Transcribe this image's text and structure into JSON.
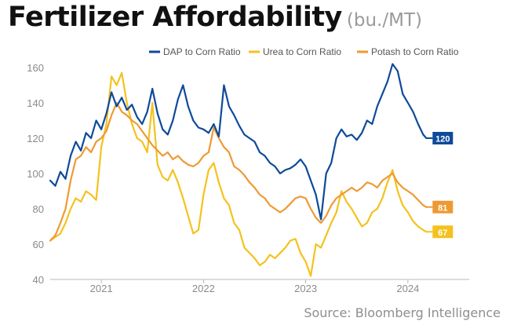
{
  "header": {
    "title": "Fertilizer Affordability",
    "subtitle": "(bu./MT)"
  },
  "source": "Source: Bloomberg Intelligence",
  "colors": {
    "dap": "#0d4a9a",
    "urea": "#f4c21e",
    "potash": "#ee9a32",
    "axis_text": "#8a8a8a"
  },
  "chart_data": {
    "type": "line",
    "title": "Fertilizer Affordability",
    "subtitle": "(bu./MT)",
    "xlabel": "",
    "ylabel": "",
    "xlim": [
      2020.5,
      2024.6
    ],
    "ylim": [
      40,
      160
    ],
    "yticks": [
      "40",
      "60",
      "80",
      "100",
      "120",
      "140",
      "160"
    ],
    "xticks": [
      {
        "label": "2021",
        "value": 2021.0
      },
      {
        "label": "2022",
        "value": 2022.0
      },
      {
        "label": "2023",
        "value": 2023.0
      },
      {
        "label": "2024",
        "value": 2024.0
      }
    ],
    "grid": false,
    "legend_position": "top-right",
    "series": [
      {
        "name": "DAP to Corn Ratio",
        "color": "#0d4a9a",
        "end_label": "120",
        "points": [
          [
            2020.5,
            96
          ],
          [
            2020.55,
            93
          ],
          [
            2020.6,
            101
          ],
          [
            2020.65,
            97
          ],
          [
            2020.7,
            110
          ],
          [
            2020.75,
            118
          ],
          [
            2020.8,
            113
          ],
          [
            2020.85,
            123
          ],
          [
            2020.9,
            120
          ],
          [
            2020.95,
            130
          ],
          [
            2021.0,
            125
          ],
          [
            2021.05,
            134
          ],
          [
            2021.1,
            146
          ],
          [
            2021.15,
            138
          ],
          [
            2021.2,
            143
          ],
          [
            2021.25,
            136
          ],
          [
            2021.3,
            139
          ],
          [
            2021.35,
            132
          ],
          [
            2021.4,
            128
          ],
          [
            2021.45,
            135
          ],
          [
            2021.5,
            148
          ],
          [
            2021.55,
            134
          ],
          [
            2021.6,
            125
          ],
          [
            2021.65,
            122
          ],
          [
            2021.7,
            130
          ],
          [
            2021.75,
            142
          ],
          [
            2021.8,
            150
          ],
          [
            2021.85,
            138
          ],
          [
            2021.9,
            130
          ],
          [
            2021.95,
            126
          ],
          [
            2022.0,
            125
          ],
          [
            2022.05,
            123
          ],
          [
            2022.1,
            128
          ],
          [
            2022.15,
            121
          ],
          [
            2022.2,
            150
          ],
          [
            2022.25,
            138
          ],
          [
            2022.3,
            133
          ],
          [
            2022.35,
            127
          ],
          [
            2022.4,
            122
          ],
          [
            2022.45,
            120
          ],
          [
            2022.5,
            118
          ],
          [
            2022.55,
            112
          ],
          [
            2022.6,
            110
          ],
          [
            2022.65,
            106
          ],
          [
            2022.7,
            104
          ],
          [
            2022.75,
            100
          ],
          [
            2022.8,
            102
          ],
          [
            2022.85,
            103
          ],
          [
            2022.9,
            105
          ],
          [
            2022.95,
            108
          ],
          [
            2023.0,
            104
          ],
          [
            2023.05,
            96
          ],
          [
            2023.1,
            88
          ],
          [
            2023.15,
            74
          ],
          [
            2023.2,
            100
          ],
          [
            2023.25,
            106
          ],
          [
            2023.3,
            120
          ],
          [
            2023.35,
            125
          ],
          [
            2023.4,
            121
          ],
          [
            2023.45,
            122
          ],
          [
            2023.5,
            119
          ],
          [
            2023.55,
            123
          ],
          [
            2023.6,
            130
          ],
          [
            2023.65,
            128
          ],
          [
            2023.7,
            138
          ],
          [
            2023.75,
            145
          ],
          [
            2023.8,
            152
          ],
          [
            2023.85,
            162
          ],
          [
            2023.9,
            158
          ],
          [
            2023.95,
            145
          ],
          [
            2024.0,
            140
          ],
          [
            2024.05,
            135
          ],
          [
            2024.1,
            128
          ],
          [
            2024.15,
            122
          ],
          [
            2024.18,
            120
          ]
        ]
      },
      {
        "name": "Urea to Corn Ratio",
        "color": "#f4c21e",
        "end_label": "67",
        "points": [
          [
            2020.5,
            62
          ],
          [
            2020.55,
            64
          ],
          [
            2020.6,
            66
          ],
          [
            2020.65,
            72
          ],
          [
            2020.7,
            80
          ],
          [
            2020.75,
            86
          ],
          [
            2020.8,
            84
          ],
          [
            2020.85,
            90
          ],
          [
            2020.9,
            88
          ],
          [
            2020.95,
            85
          ],
          [
            2021.0,
            115
          ],
          [
            2021.05,
            128
          ],
          [
            2021.1,
            155
          ],
          [
            2021.15,
            150
          ],
          [
            2021.2,
            157
          ],
          [
            2021.25,
            140
          ],
          [
            2021.3,
            128
          ],
          [
            2021.35,
            120
          ],
          [
            2021.4,
            118
          ],
          [
            2021.45,
            112
          ],
          [
            2021.5,
            140
          ],
          [
            2021.55,
            105
          ],
          [
            2021.6,
            98
          ],
          [
            2021.65,
            96
          ],
          [
            2021.7,
            102
          ],
          [
            2021.75,
            95
          ],
          [
            2021.8,
            86
          ],
          [
            2021.85,
            76
          ],
          [
            2021.9,
            66
          ],
          [
            2021.95,
            68
          ],
          [
            2022.0,
            88
          ],
          [
            2022.05,
            102
          ],
          [
            2022.1,
            106
          ],
          [
            2022.15,
            95
          ],
          [
            2022.2,
            86
          ],
          [
            2022.25,
            82
          ],
          [
            2022.3,
            72
          ],
          [
            2022.35,
            68
          ],
          [
            2022.4,
            58
          ],
          [
            2022.45,
            55
          ],
          [
            2022.5,
            52
          ],
          [
            2022.55,
            48
          ],
          [
            2022.6,
            50
          ],
          [
            2022.65,
            54
          ],
          [
            2022.7,
            52
          ],
          [
            2022.75,
            55
          ],
          [
            2022.8,
            58
          ],
          [
            2022.85,
            62
          ],
          [
            2022.9,
            63
          ],
          [
            2022.95,
            55
          ],
          [
            2023.0,
            50
          ],
          [
            2023.05,
            42
          ],
          [
            2023.1,
            60
          ],
          [
            2023.15,
            58
          ],
          [
            2023.2,
            65
          ],
          [
            2023.25,
            72
          ],
          [
            2023.3,
            78
          ],
          [
            2023.35,
            90
          ],
          [
            2023.4,
            84
          ],
          [
            2023.45,
            80
          ],
          [
            2023.5,
            75
          ],
          [
            2023.55,
            70
          ],
          [
            2023.6,
            72
          ],
          [
            2023.65,
            78
          ],
          [
            2023.7,
            80
          ],
          [
            2023.75,
            86
          ],
          [
            2023.8,
            95
          ],
          [
            2023.85,
            102
          ],
          [
            2023.9,
            90
          ],
          [
            2023.95,
            82
          ],
          [
            2024.0,
            78
          ],
          [
            2024.05,
            73
          ],
          [
            2024.1,
            70
          ],
          [
            2024.15,
            68
          ],
          [
            2024.18,
            67
          ]
        ]
      },
      {
        "name": "Potash to Corn Ratio",
        "color": "#ee9a32",
        "end_label": "81",
        "points": [
          [
            2020.5,
            62
          ],
          [
            2020.55,
            65
          ],
          [
            2020.6,
            72
          ],
          [
            2020.65,
            80
          ],
          [
            2020.7,
            96
          ],
          [
            2020.75,
            108
          ],
          [
            2020.8,
            110
          ],
          [
            2020.85,
            115
          ],
          [
            2020.9,
            112
          ],
          [
            2020.95,
            118
          ],
          [
            2021.0,
            120
          ],
          [
            2021.05,
            124
          ],
          [
            2021.1,
            133
          ],
          [
            2021.15,
            140
          ],
          [
            2021.2,
            135
          ],
          [
            2021.25,
            133
          ],
          [
            2021.3,
            130
          ],
          [
            2021.35,
            128
          ],
          [
            2021.4,
            124
          ],
          [
            2021.45,
            120
          ],
          [
            2021.5,
            116
          ],
          [
            2021.55,
            113
          ],
          [
            2021.6,
            110
          ],
          [
            2021.65,
            112
          ],
          [
            2021.7,
            108
          ],
          [
            2021.75,
            110
          ],
          [
            2021.8,
            107
          ],
          [
            2021.85,
            105
          ],
          [
            2021.9,
            104
          ],
          [
            2021.95,
            106
          ],
          [
            2022.0,
            110
          ],
          [
            2022.05,
            112
          ],
          [
            2022.1,
            126
          ],
          [
            2022.15,
            120
          ],
          [
            2022.2,
            115
          ],
          [
            2022.25,
            112
          ],
          [
            2022.3,
            104
          ],
          [
            2022.35,
            102
          ],
          [
            2022.4,
            99
          ],
          [
            2022.45,
            95
          ],
          [
            2022.5,
            92
          ],
          [
            2022.55,
            88
          ],
          [
            2022.6,
            86
          ],
          [
            2022.65,
            82
          ],
          [
            2022.7,
            80
          ],
          [
            2022.75,
            78
          ],
          [
            2022.8,
            80
          ],
          [
            2022.85,
            83
          ],
          [
            2022.9,
            86
          ],
          [
            2022.95,
            87
          ],
          [
            2023.0,
            86
          ],
          [
            2023.05,
            80
          ],
          [
            2023.1,
            75
          ],
          [
            2023.15,
            72
          ],
          [
            2023.2,
            76
          ],
          [
            2023.25,
            82
          ],
          [
            2023.3,
            86
          ],
          [
            2023.35,
            88
          ],
          [
            2023.4,
            90
          ],
          [
            2023.45,
            92
          ],
          [
            2023.5,
            90
          ],
          [
            2023.55,
            92
          ],
          [
            2023.6,
            95
          ],
          [
            2023.65,
            94
          ],
          [
            2023.7,
            92
          ],
          [
            2023.75,
            96
          ],
          [
            2023.8,
            98
          ],
          [
            2023.85,
            100
          ],
          [
            2023.9,
            95
          ],
          [
            2023.95,
            92
          ],
          [
            2024.0,
            90
          ],
          [
            2024.05,
            88
          ],
          [
            2024.1,
            85
          ],
          [
            2024.15,
            82
          ],
          [
            2024.18,
            81
          ]
        ]
      }
    ]
  }
}
